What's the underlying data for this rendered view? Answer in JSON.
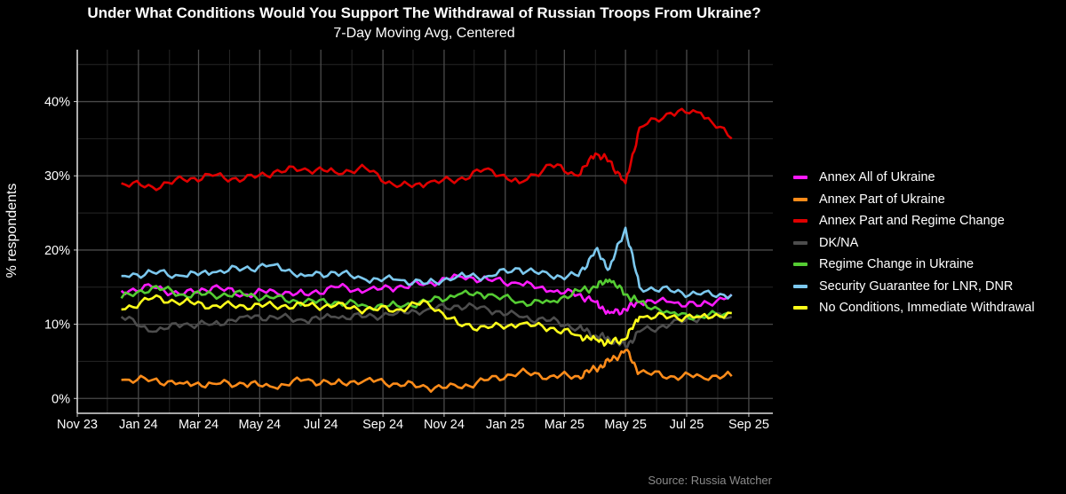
{
  "chart_data": {
    "type": "line",
    "title": "Under What Conditions Would You Support The Withdrawal of Russian Troops From Ukraine?",
    "subtitle": "7-Day Moving Avg, Centered",
    "xlabel": "",
    "ylabel": "% respondents",
    "source": "Source: Russia Watcher",
    "x_ticks": [
      "Nov 23",
      "Jan 24",
      "Mar 24",
      "May 24",
      "Jul 24",
      "Sep 24",
      "Nov 24",
      "Jan 25",
      "Mar 25",
      "May 25",
      "Jul 25",
      "Sep 25"
    ],
    "y_ticks": [
      "0%",
      "10%",
      "20%",
      "30%",
      "40%"
    ],
    "ylim": [
      -2,
      47
    ],
    "grid": true,
    "legend_position": "right",
    "x": [
      "2023-12-15",
      "2024-01-15",
      "2024-02-15",
      "2024-03-15",
      "2024-04-15",
      "2024-05-15",
      "2024-06-15",
      "2024-07-15",
      "2024-08-15",
      "2024-09-15",
      "2024-10-15",
      "2024-11-15",
      "2024-12-15",
      "2025-01-15",
      "2025-02-15",
      "2025-03-15",
      "2025-04-01",
      "2025-04-15",
      "2025-05-01",
      "2025-05-15",
      "2025-06-15",
      "2025-07-15",
      "2025-08-15"
    ],
    "series": [
      {
        "name": "Annex All of Ukraine",
        "color": "#ff1aff",
        "values": [
          14.5,
          15,
          14,
          15,
          14,
          14.5,
          14,
          15,
          14.5,
          15,
          15.5,
          16.5,
          16,
          15.5,
          14.5,
          14,
          13,
          11.5,
          12,
          13,
          13,
          12.5,
          14
        ]
      },
      {
        "name": "Annex Part of Ukraine",
        "color": "#ff8c1a",
        "values": [
          2.5,
          2.5,
          2,
          2,
          2,
          1.5,
          2.5,
          2,
          2.5,
          2,
          1.5,
          1.5,
          2.5,
          3.5,
          3,
          3,
          4,
          5,
          6.5,
          3.5,
          3,
          3,
          3
        ]
      },
      {
        "name": "Annex Part and Regime Change",
        "color": "#e00000",
        "values": [
          29,
          28.5,
          29.5,
          30,
          29.5,
          30.5,
          31,
          30.5,
          31,
          28.5,
          29,
          29.5,
          31,
          29,
          31.5,
          30,
          33,
          32,
          29,
          36.5,
          38.5,
          38.5,
          35
        ]
      },
      {
        "name": "DK/NA",
        "color": "#4d4d4d",
        "values": [
          11,
          9,
          10,
          10,
          11,
          11,
          10.5,
          11,
          11,
          11.5,
          12,
          12.5,
          12,
          11,
          10.5,
          9.5,
          8.5,
          8,
          7,
          9,
          10,
          11,
          11
        ]
      },
      {
        "name": "Regime Change in Ukraine",
        "color": "#55cc33",
        "values": [
          13.5,
          15,
          14,
          14,
          14,
          13.5,
          13,
          13,
          12.5,
          12.5,
          13,
          14,
          14,
          13,
          13,
          14.5,
          15,
          16,
          14,
          13,
          11.5,
          11,
          11.5
        ]
      },
      {
        "name": "Security Guarantee for LNR, DNR",
        "color": "#7cc8ee",
        "values": [
          16.5,
          17,
          16.5,
          17,
          17.5,
          18,
          16.5,
          17,
          16,
          16,
          15.5,
          16.5,
          16.5,
          17.5,
          16.5,
          16.5,
          20,
          17.5,
          23,
          15,
          14.5,
          14,
          14
        ]
      },
      {
        "name": "No Conditions, Immediate Withdrawal",
        "color": "#ffff1a",
        "values": [
          12,
          13.5,
          13,
          12.5,
          12.5,
          12.5,
          12.5,
          12.5,
          12,
          12,
          13,
          10,
          9.5,
          10,
          9.5,
          8.5,
          8,
          7.5,
          8,
          11,
          11,
          11,
          11.5
        ]
      }
    ]
  }
}
